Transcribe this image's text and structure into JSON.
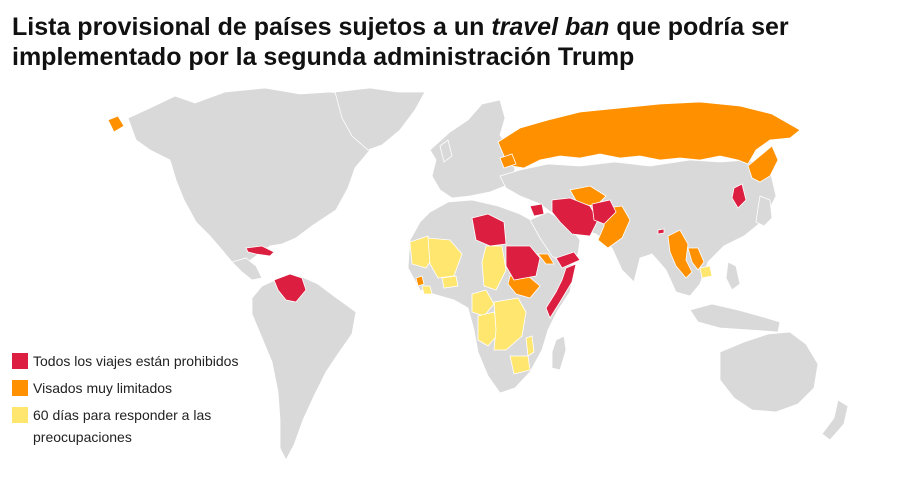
{
  "title": {
    "before": "Lista provisional de países sujetos a un ",
    "emphasis": "travel ban",
    "after": " que podría ser implementado por la segunda administración Trump"
  },
  "colors": {
    "red": "#dc1e40",
    "orange": "#ff9000",
    "yellow": "#ffe66e",
    "land": "#d9d9d9",
    "background": "#ffffff"
  },
  "legend": [
    {
      "label": "Todos los viajes están prohibidos",
      "color": "#dc1e40"
    },
    {
      "label": "Visados muy limitados",
      "color": "#ff9000"
    },
    {
      "label": "60 días para responder a las preocupaciones",
      "color": "#ffe66e"
    }
  ],
  "map": {
    "projection": "world",
    "categories": {
      "red": [
        "Cuba",
        "Venezuela",
        "Libya",
        "Sudan",
        "Somalia",
        "Yemen",
        "Syria",
        "Iran",
        "Afghanistan",
        "North Korea",
        "Bhutan"
      ],
      "orange": [
        "Russia",
        "Belarus",
        "Turkmenistan",
        "Pakistan",
        "Myanmar",
        "Laos",
        "Sierra Leone",
        "South Sudan",
        "Eritrea"
      ],
      "yellow": [
        "Mauritania",
        "Mali",
        "Burkina Faso",
        "Liberia",
        "Chad",
        "Cameroon",
        "Congo",
        "Democratic Republic of the Congo",
        "Malawi",
        "Zimbabwe",
        "Cambodia"
      ]
    }
  }
}
